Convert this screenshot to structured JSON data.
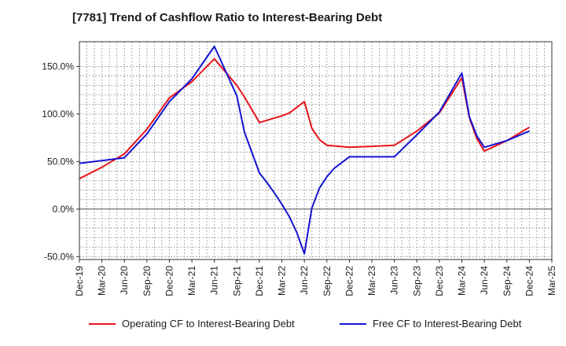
{
  "chart_data": {
    "type": "line",
    "title": "[7781]  Trend of Cashflow Ratio to Interest-Bearing Debt",
    "xlabel": "",
    "ylabel": "",
    "x_ticks": [
      "Dec-19",
      "Mar-20",
      "Jun-20",
      "Sep-20",
      "Dec-20",
      "Mar-21",
      "Jun-21",
      "Sep-21",
      "Dec-21",
      "Mar-22",
      "Jun-22",
      "Sep-22",
      "Dec-22",
      "Mar-23",
      "Jun-23",
      "Sep-23",
      "Dec-23",
      "Mar-24",
      "Jun-24",
      "Sep-24",
      "Dec-24",
      "Mar-25"
    ],
    "y_ticks": [
      "-50.0%",
      "0.0%",
      "50.0%",
      "100.0%",
      "150.0%"
    ],
    "y_tick_values": [
      -50,
      0,
      50,
      100,
      150
    ],
    "ylim": [
      -53,
      176
    ],
    "xlim": [
      "2019-12",
      "2025-03"
    ],
    "grid": true,
    "legend_position": "bottom",
    "series": [
      {
        "name": "Operating CF to Interest-Bearing Debt",
        "color": "#e8141b",
        "points": [
          [
            "2019-12",
            32
          ],
          [
            "2020-03",
            44
          ],
          [
            "2020-06",
            58
          ],
          [
            "2020-09",
            84
          ],
          [
            "2020-12",
            117
          ],
          [
            "2021-03",
            134
          ],
          [
            "2021-06",
            158
          ],
          [
            "2021-09",
            130
          ],
          [
            "2021-10",
            118
          ],
          [
            "2021-12",
            91
          ],
          [
            "2022-03",
            98
          ],
          [
            "2022-04",
            101
          ],
          [
            "2022-06",
            113
          ],
          [
            "2022-07",
            85
          ],
          [
            "2022-08",
            73
          ],
          [
            "2022-09",
            67
          ],
          [
            "2022-12",
            65
          ],
          [
            "2023-03",
            66
          ],
          [
            "2023-06",
            67
          ],
          [
            "2023-09",
            82
          ],
          [
            "2023-12",
            101
          ],
          [
            "2024-03",
            138
          ],
          [
            "2024-04",
            96
          ],
          [
            "2024-05",
            74
          ],
          [
            "2024-06",
            61
          ],
          [
            "2024-09",
            72
          ],
          [
            "2024-12",
            86
          ]
        ]
      },
      {
        "name": "Free CF to Interest-Bearing Debt",
        "color": "#1414d2",
        "points": [
          [
            "2019-12",
            48
          ],
          [
            "2020-03",
            51
          ],
          [
            "2020-06",
            54
          ],
          [
            "2020-09",
            79
          ],
          [
            "2020-12",
            113
          ],
          [
            "2021-03",
            137
          ],
          [
            "2021-06",
            171
          ],
          [
            "2021-09",
            119
          ],
          [
            "2021-10",
            81
          ],
          [
            "2021-12",
            38
          ],
          [
            "2022-01",
            28
          ],
          [
            "2022-02",
            17
          ],
          [
            "2022-03",
            5
          ],
          [
            "2022-04",
            -8
          ],
          [
            "2022-05",
            -25
          ],
          [
            "2022-06",
            -47
          ],
          [
            "2022-07",
            1
          ],
          [
            "2022-08",
            22
          ],
          [
            "2022-09",
            34
          ],
          [
            "2022-10",
            43
          ],
          [
            "2022-12",
            55
          ],
          [
            "2023-03",
            55
          ],
          [
            "2023-06",
            55
          ],
          [
            "2023-09",
            78
          ],
          [
            "2023-12",
            102
          ],
          [
            "2024-03",
            143
          ],
          [
            "2024-04",
            97
          ],
          [
            "2024-05",
            77
          ],
          [
            "2024-06",
            65
          ],
          [
            "2024-09",
            72
          ],
          [
            "2024-12",
            82
          ]
        ]
      }
    ]
  }
}
